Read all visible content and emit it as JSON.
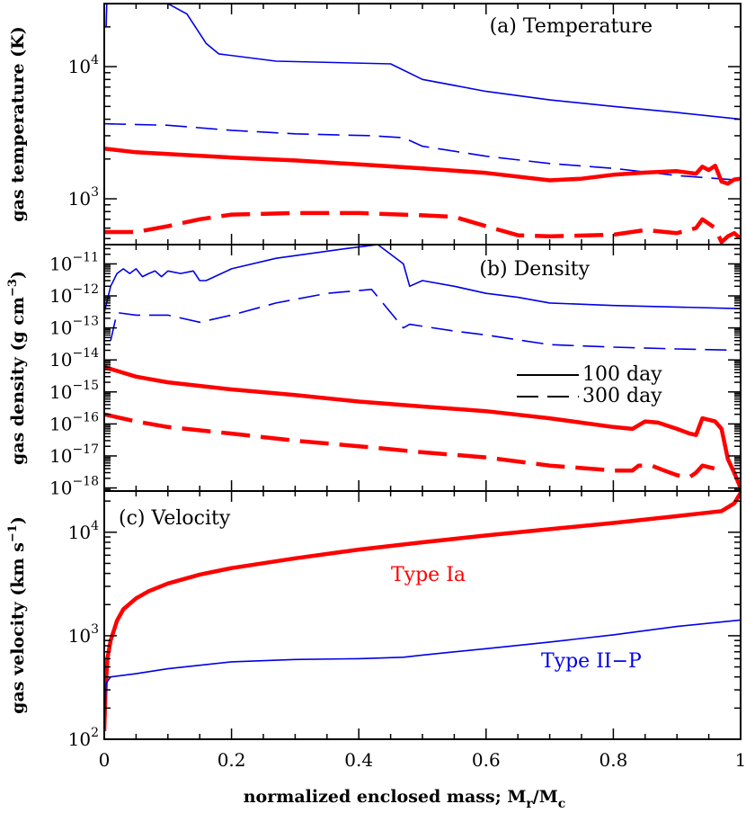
{
  "figure": {
    "xlabel_main": "normalized enclosed mass; M",
    "xlabel_sub1": "r",
    "xlabel_mid": "/M",
    "xlabel_sub2": "c"
  },
  "colors": {
    "ia": "#ff0000",
    "iip": "#0000e6",
    "axes": "#000000"
  },
  "chart_data": [
    {
      "id": "temperature",
      "type": "line",
      "title": "(a) Temperature",
      "ylabel": "gas temperature (K)",
      "yscale": "log",
      "ylim": [
        450,
        30000
      ],
      "xlim": [
        0,
        1
      ],
      "yticks": [
        {
          "v": 1000,
          "label": "10",
          "exp": "3"
        },
        {
          "v": 10000,
          "label": "10",
          "exp": "4"
        }
      ],
      "xticks": [
        0,
        0.2,
        0.4,
        0.6,
        0.8,
        1
      ],
      "series": [
        {
          "key": "iip_100",
          "color": "iip",
          "width": 1.6,
          "dash": "",
          "points": [
            [
              0.003,
              20000
            ],
            [
              0.004,
              30000
            ],
            [
              0.1,
              30000
            ],
            [
              0.13,
              25000
            ],
            [
              0.16,
              15000
            ],
            [
              0.18,
              12500
            ],
            [
              0.27,
              11000
            ],
            [
              0.45,
              10500
            ],
            [
              0.5,
              8000
            ],
            [
              0.6,
              6500
            ],
            [
              0.7,
              5600
            ],
            [
              0.8,
              5000
            ],
            [
              0.9,
              4500
            ],
            [
              1,
              4000
            ]
          ]
        },
        {
          "key": "iip_300",
          "color": "iip",
          "width": 1.6,
          "dash": "24 10",
          "points": [
            [
              0,
              3700
            ],
            [
              0.1,
              3600
            ],
            [
              0.2,
              3300
            ],
            [
              0.3,
              3100
            ],
            [
              0.42,
              3000
            ],
            [
              0.47,
              2900
            ],
            [
              0.5,
              2500
            ],
            [
              0.6,
              2100
            ],
            [
              0.7,
              1850
            ],
            [
              0.8,
              1700
            ],
            [
              0.9,
              1500
            ],
            [
              1,
              1380
            ]
          ]
        },
        {
          "key": "ia_100",
          "color": "ia",
          "width": 4.5,
          "dash": "",
          "points": [
            [
              0,
              2400
            ],
            [
              0.05,
              2250
            ],
            [
              0.1,
              2180
            ],
            [
              0.2,
              2050
            ],
            [
              0.3,
              1950
            ],
            [
              0.4,
              1820
            ],
            [
              0.5,
              1700
            ],
            [
              0.6,
              1570
            ],
            [
              0.7,
              1380
            ],
            [
              0.75,
              1420
            ],
            [
              0.8,
              1520
            ],
            [
              0.85,
              1580
            ],
            [
              0.9,
              1620
            ],
            [
              0.93,
              1550
            ],
            [
              0.94,
              1750
            ],
            [
              0.95,
              1650
            ],
            [
              0.96,
              1780
            ],
            [
              0.97,
              1350
            ],
            [
              0.98,
              1300
            ],
            [
              0.99,
              1400
            ],
            [
              1,
              1420
            ]
          ]
        },
        {
          "key": "ia_300",
          "color": "ia",
          "width": 4.5,
          "dash": "32 12",
          "points": [
            [
              0,
              560
            ],
            [
              0.05,
              560
            ],
            [
              0.1,
              620
            ],
            [
              0.15,
              700
            ],
            [
              0.2,
              760
            ],
            [
              0.3,
              780
            ],
            [
              0.4,
              780
            ],
            [
              0.5,
              750
            ],
            [
              0.55,
              730
            ],
            [
              0.6,
              620
            ],
            [
              0.65,
              530
            ],
            [
              0.7,
              520
            ],
            [
              0.8,
              535
            ],
            [
              0.85,
              580
            ],
            [
              0.9,
              550
            ],
            [
              0.93,
              600
            ],
            [
              0.94,
              700
            ],
            [
              0.96,
              600
            ],
            [
              0.97,
              470
            ],
            [
              0.98,
              520
            ],
            [
              0.99,
              550
            ],
            [
              1,
              500
            ]
          ]
        }
      ]
    },
    {
      "id": "density",
      "type": "line",
      "title": "(b) Density",
      "ylabel_main": "gas density (g cm",
      "ylabel_exp": "−3",
      "ylabel_close": ")",
      "yscale": "log",
      "ylim": [
        8e-19,
        4e-11
      ],
      "xlim": [
        0,
        1
      ],
      "yticks": [
        {
          "v": 1e-18,
          "label": "10",
          "exp": "−18"
        },
        {
          "v": 1e-17,
          "label": "10",
          "exp": "−17"
        },
        {
          "v": 1e-16,
          "label": "10",
          "exp": "−16"
        },
        {
          "v": 1e-15,
          "label": "10",
          "exp": "−15"
        },
        {
          "v": 1e-14,
          "label": "10",
          "exp": "−14"
        },
        {
          "v": 1e-13,
          "label": "10",
          "exp": "−13"
        },
        {
          "v": 1e-12,
          "label": "10",
          "exp": "−12"
        },
        {
          "v": 1e-11,
          "label": "10",
          "exp": "−11"
        }
      ],
      "xticks": [
        0,
        0.2,
        0.4,
        0.6,
        0.8,
        1
      ],
      "legend": {
        "position": "center-right",
        "entries": [
          {
            "label": "100 day",
            "dash": ""
          },
          {
            "label": "300 day",
            "dash": "24 10"
          }
        ]
      },
      "series": [
        {
          "key": "iip_100",
          "color": "iip",
          "width": 1.6,
          "dash": "",
          "points": [
            [
              0,
              3e-13
            ],
            [
              0.01,
              2e-12
            ],
            [
              0.02,
              5e-12
            ],
            [
              0.03,
              7e-12
            ],
            [
              0.04,
              5e-12
            ],
            [
              0.05,
              7e-12
            ],
            [
              0.06,
              4e-12
            ],
            [
              0.07,
              5e-12
            ],
            [
              0.08,
              6e-12
            ],
            [
              0.09,
              4e-12
            ],
            [
              0.1,
              6e-12
            ],
            [
              0.12,
              5e-12
            ],
            [
              0.14,
              6e-12
            ],
            [
              0.15,
              3e-12
            ],
            [
              0.16,
              3e-12
            ],
            [
              0.2,
              7e-12
            ],
            [
              0.27,
              1.5e-11
            ],
            [
              0.38,
              3e-11
            ],
            [
              0.43,
              4e-11
            ],
            [
              0.47,
              1e-11
            ],
            [
              0.48,
              2e-12
            ],
            [
              0.5,
              3e-12
            ],
            [
              0.55,
              2e-12
            ],
            [
              0.6,
              1.2e-12
            ],
            [
              0.65,
              9e-13
            ],
            [
              0.7,
              6e-13
            ],
            [
              0.8,
              5e-13
            ],
            [
              0.9,
              4.5e-13
            ],
            [
              1,
              4e-13
            ]
          ]
        },
        {
          "key": "iip_300",
          "color": "iip",
          "width": 1.6,
          "dash": "24 10",
          "points": [
            [
              0.01,
              4e-14
            ],
            [
              0.02,
              3e-13
            ],
            [
              0.05,
              2.5e-13
            ],
            [
              0.1,
              2.5e-13
            ],
            [
              0.15,
              1.5e-13
            ],
            [
              0.2,
              2.5e-13
            ],
            [
              0.27,
              6e-13
            ],
            [
              0.35,
              1.2e-12
            ],
            [
              0.42,
              1.6e-12
            ],
            [
              0.47,
              1e-13
            ],
            [
              0.48,
              1.3e-13
            ],
            [
              0.55,
              8e-14
            ],
            [
              0.6,
              6e-14
            ],
            [
              0.7,
              3e-14
            ],
            [
              0.8,
              2.5e-14
            ],
            [
              0.9,
              2.2e-14
            ],
            [
              1,
              2e-14
            ]
          ]
        },
        {
          "key": "ia_100",
          "color": "ia",
          "width": 4.5,
          "dash": "",
          "points": [
            [
              0,
              6e-15
            ],
            [
              0.05,
              3e-15
            ],
            [
              0.1,
              2e-15
            ],
            [
              0.2,
              1.2e-15
            ],
            [
              0.3,
              8e-16
            ],
            [
              0.4,
              5e-16
            ],
            [
              0.5,
              3.5e-16
            ],
            [
              0.6,
              2.5e-16
            ],
            [
              0.7,
              1.5e-16
            ],
            [
              0.8,
              8e-17
            ],
            [
              0.83,
              7e-17
            ],
            [
              0.85,
              1.2e-16
            ],
            [
              0.87,
              1.1e-16
            ],
            [
              0.9,
              7e-17
            ],
            [
              0.92,
              5e-17
            ],
            [
              0.93,
              4.5e-17
            ],
            [
              0.94,
              1.5e-16
            ],
            [
              0.96,
              1.2e-16
            ],
            [
              0.97,
              7e-17
            ],
            [
              0.98,
              8e-18
            ],
            [
              0.99,
              3e-18
            ],
            [
              1,
              1e-18
            ]
          ]
        },
        {
          "key": "ia_300",
          "color": "ia",
          "width": 4.5,
          "dash": "32 12",
          "points": [
            [
              0,
              2e-16
            ],
            [
              0.05,
              1.2e-16
            ],
            [
              0.1,
              8e-17
            ],
            [
              0.2,
              5e-17
            ],
            [
              0.3,
              3e-17
            ],
            [
              0.4,
              2e-17
            ],
            [
              0.5,
              1.3e-17
            ],
            [
              0.6,
              9e-18
            ],
            [
              0.7,
              5e-18
            ],
            [
              0.8,
              3.5e-18
            ],
            [
              0.83,
              3.5e-18
            ],
            [
              0.84,
              5e-18
            ],
            [
              0.86,
              5e-18
            ],
            [
              0.88,
              3.5e-18
            ],
            [
              0.9,
              2.5e-18
            ],
            [
              0.92,
              2.2e-18
            ],
            [
              0.93,
              3e-18
            ],
            [
              0.94,
              5e-18
            ],
            [
              0.96,
              4e-18
            ]
          ]
        }
      ]
    },
    {
      "id": "velocity",
      "type": "line",
      "title": "(c) Velocity",
      "ylabel_main": "gas velocity (km s",
      "ylabel_exp": "−1",
      "ylabel_close": ")",
      "yscale": "log",
      "ylim": [
        100,
        25000
      ],
      "xlim": [
        0,
        1
      ],
      "yticks": [
        {
          "v": 100,
          "label": "10",
          "exp": "2"
        },
        {
          "v": 1000,
          "label": "10",
          "exp": "3"
        },
        {
          "v": 10000,
          "label": "10",
          "exp": "4"
        }
      ],
      "xticks": [
        0,
        0.2,
        0.4,
        0.6,
        0.8,
        1
      ],
      "xticklabels": [
        "0",
        "0.2",
        "0.4",
        "0.6",
        "0.8",
        "1"
      ],
      "annotations": [
        {
          "text": "Type Ia",
          "color": "ia"
        },
        {
          "text": "Type II−P",
          "color": "iip"
        }
      ],
      "series": [
        {
          "key": "ia",
          "color": "ia",
          "width": 4.5,
          "dash": "",
          "points": [
            [
              0,
              120
            ],
            [
              0.002,
              300
            ],
            [
              0.005,
              600
            ],
            [
              0.01,
              900
            ],
            [
              0.02,
              1400
            ],
            [
              0.03,
              1800
            ],
            [
              0.05,
              2300
            ],
            [
              0.07,
              2700
            ],
            [
              0.1,
              3200
            ],
            [
              0.15,
              3900
            ],
            [
              0.2,
              4500
            ],
            [
              0.3,
              5600
            ],
            [
              0.4,
              6800
            ],
            [
              0.5,
              8000
            ],
            [
              0.6,
              9300
            ],
            [
              0.7,
              10700
            ],
            [
              0.8,
              12300
            ],
            [
              0.9,
              14300
            ],
            [
              0.97,
              16000
            ],
            [
              0.99,
              19000
            ],
            [
              1,
              24000
            ]
          ]
        },
        {
          "key": "iip",
          "color": "iip",
          "width": 1.6,
          "dash": "",
          "points": [
            [
              0,
              140
            ],
            [
              0.003,
              350
            ],
            [
              0.01,
              400
            ],
            [
              0.05,
              430
            ],
            [
              0.1,
              480
            ],
            [
              0.2,
              560
            ],
            [
              0.3,
              590
            ],
            [
              0.4,
              600
            ],
            [
              0.47,
              620
            ],
            [
              0.5,
              650
            ],
            [
              0.6,
              750
            ],
            [
              0.7,
              870
            ],
            [
              0.8,
              1020
            ],
            [
              0.9,
              1230
            ],
            [
              1,
              1420
            ]
          ]
        }
      ]
    }
  ]
}
